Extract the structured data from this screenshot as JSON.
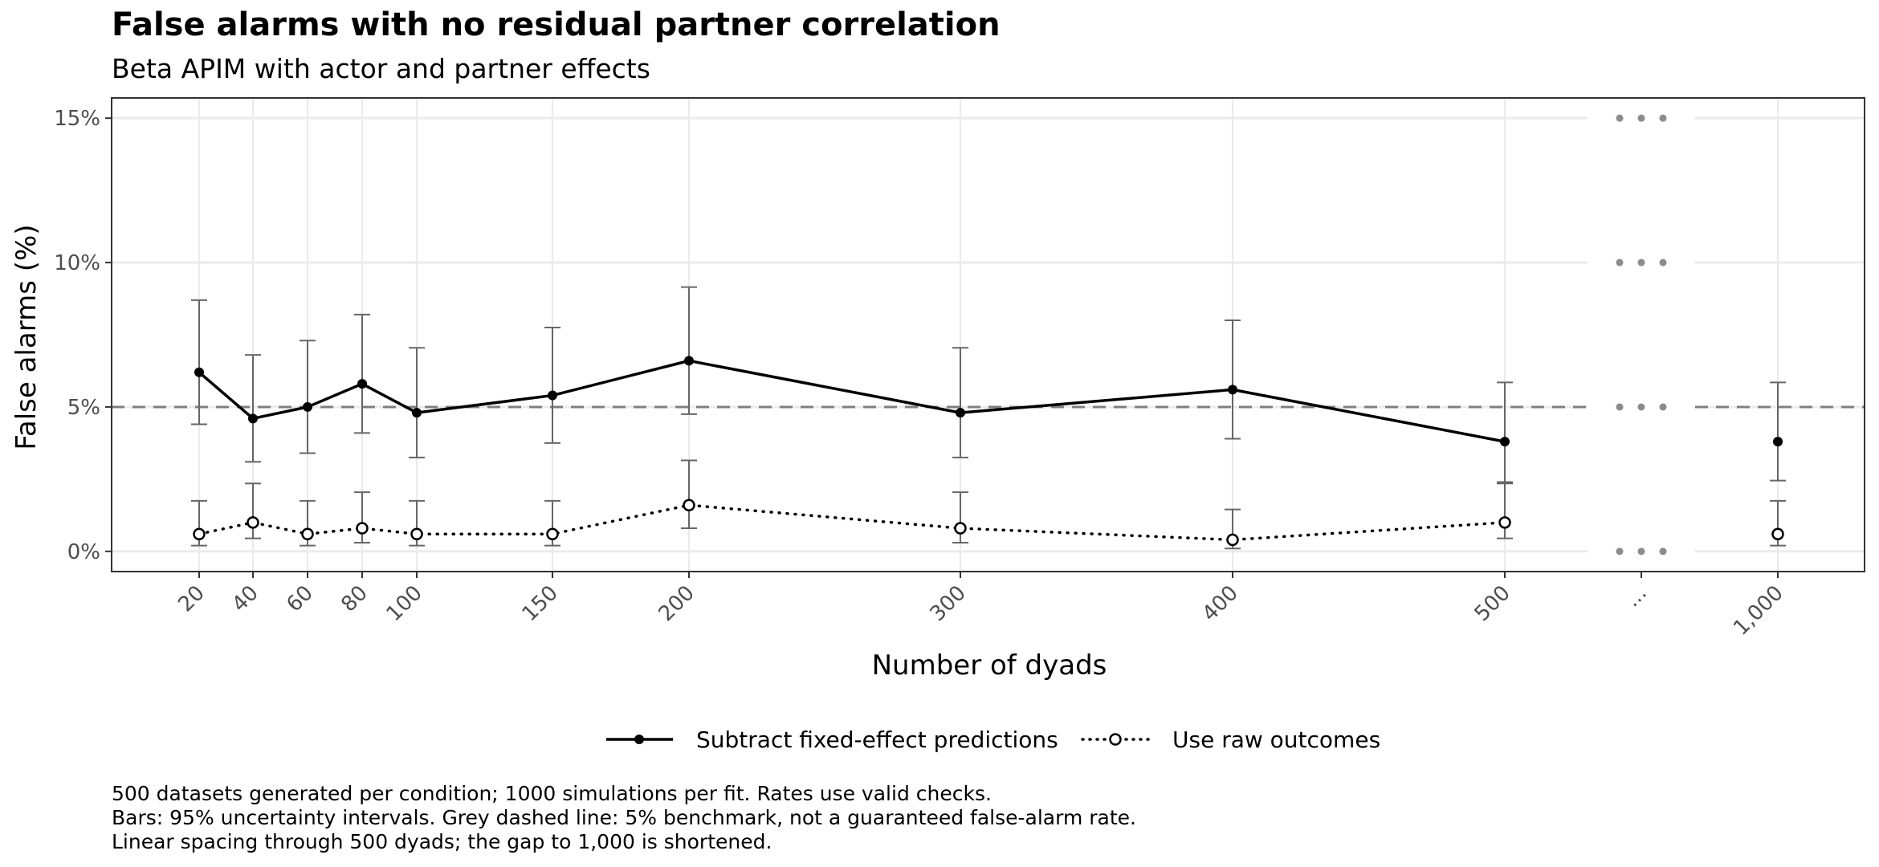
{
  "chart_data": {
    "type": "line",
    "title": "False alarms with no residual partner correlation",
    "subtitle": "Beta APIM with actor and partner effects",
    "xlabel": "Number of dyads",
    "ylabel": "False alarms (%)",
    "x_ticks": [
      "20",
      "40",
      "60",
      "80",
      "100",
      "150",
      "200",
      "300",
      "400",
      "500",
      "...",
      "1,000"
    ],
    "y_ticks": [
      "0%",
      "5%",
      "10%",
      "15%"
    ],
    "ylim": [
      -0.7,
      15.7
    ],
    "benchmark": 5,
    "x_gap_label": "...",
    "grid": true,
    "legend_position": "bottom",
    "series": [
      {
        "name": "Subtract fixed-effect predictions",
        "line_style": "solid",
        "marker": "filled-circle",
        "color": "#000000",
        "points": [
          {
            "x": "20",
            "y": 6.2,
            "lo": 4.4,
            "hi": 8.7
          },
          {
            "x": "40",
            "y": 4.6,
            "lo": 3.1,
            "hi": 6.8
          },
          {
            "x": "60",
            "y": 5.0,
            "lo": 3.4,
            "hi": 7.3
          },
          {
            "x": "80",
            "y": 5.8,
            "lo": 4.1,
            "hi": 8.2
          },
          {
            "x": "100",
            "y": 4.8,
            "lo": 3.25,
            "hi": 7.05
          },
          {
            "x": "150",
            "y": 5.4,
            "lo": 3.75,
            "hi": 7.75
          },
          {
            "x": "200",
            "y": 6.6,
            "lo": 4.75,
            "hi": 9.15
          },
          {
            "x": "300",
            "y": 4.8,
            "lo": 3.25,
            "hi": 7.05
          },
          {
            "x": "400",
            "y": 5.6,
            "lo": 3.9,
            "hi": 8.0
          },
          {
            "x": "500",
            "y": 3.8,
            "lo": 2.4,
            "hi": 5.85
          },
          {
            "x": "1,000",
            "y": 3.8,
            "lo": 2.45,
            "hi": 5.85
          }
        ]
      },
      {
        "name": "Use raw outcomes",
        "line_style": "dotted",
        "marker": "open-circle",
        "color": "#000000",
        "points": [
          {
            "x": "20",
            "y": 0.6,
            "lo": 0.2,
            "hi": 1.75
          },
          {
            "x": "40",
            "y": 1.0,
            "lo": 0.45,
            "hi": 2.35
          },
          {
            "x": "60",
            "y": 0.6,
            "lo": 0.2,
            "hi": 1.75
          },
          {
            "x": "80",
            "y": 0.8,
            "lo": 0.3,
            "hi": 2.05
          },
          {
            "x": "100",
            "y": 0.6,
            "lo": 0.2,
            "hi": 1.75
          },
          {
            "x": "150",
            "y": 0.6,
            "lo": 0.2,
            "hi": 1.75
          },
          {
            "x": "200",
            "y": 1.6,
            "lo": 0.8,
            "hi": 3.15
          },
          {
            "x": "300",
            "y": 0.8,
            "lo": 0.3,
            "hi": 2.05
          },
          {
            "x": "400",
            "y": 0.4,
            "lo": 0.1,
            "hi": 1.45
          },
          {
            "x": "500",
            "y": 1.0,
            "lo": 0.45,
            "hi": 2.35
          },
          {
            "x": "1,000",
            "y": 0.6,
            "lo": 0.2,
            "hi": 1.75
          }
        ]
      }
    ],
    "caption": [
      "500 datasets generated per condition; 1000 simulations per fit. Rates use valid checks.",
      "Bars: 95% uncertainty intervals. Grey dashed line: 5% benchmark, not a guaranteed false-alarm rate.",
      "Linear spacing through 500 dyads; the gap to 1,000 is shortened."
    ],
    "colors": {
      "grid": "#ebebeb",
      "errorbar": "#666666",
      "benchmark": "#7f7f7f",
      "gap_dots": "#8c8c8c",
      "panel_border": "#333333"
    }
  }
}
